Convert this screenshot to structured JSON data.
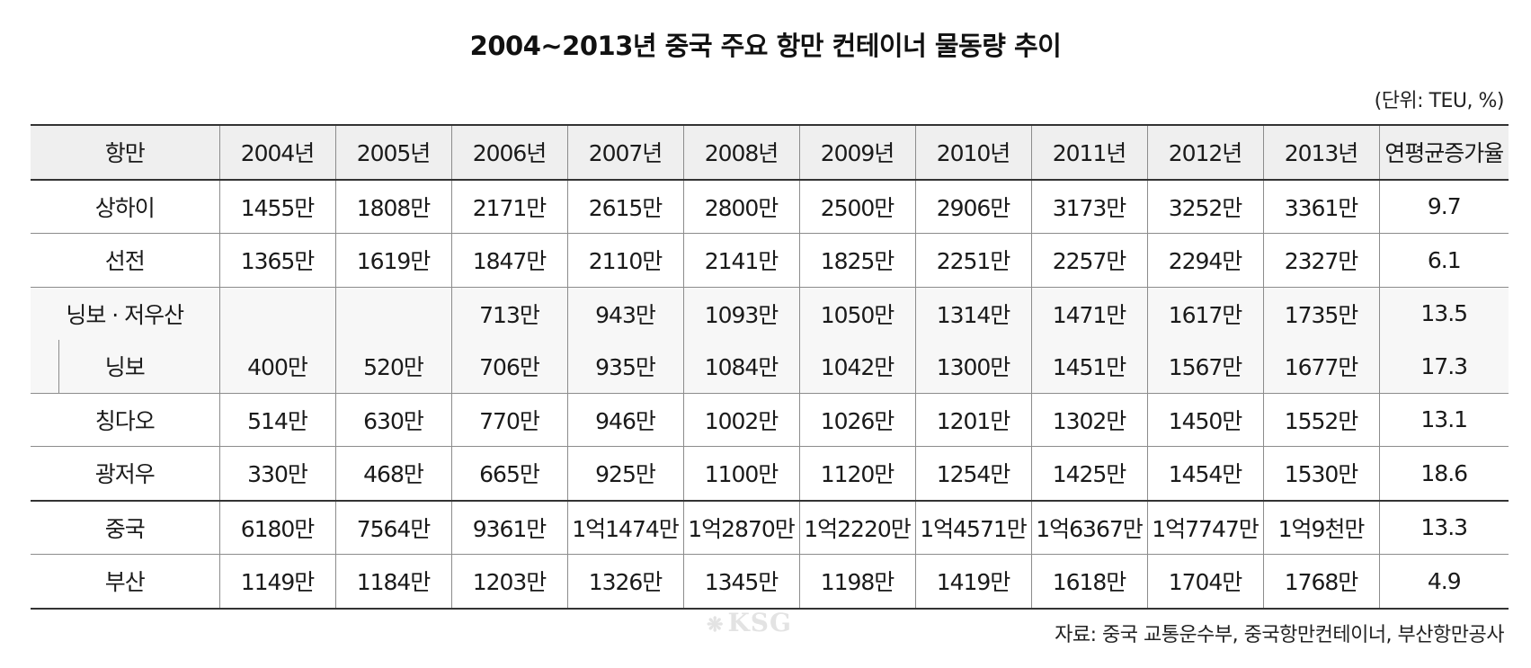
{
  "title": "2004~2013년 중국 주요 항만 컨테이너 물동량 추이",
  "unit": "(단위: TEU, %)",
  "table": {
    "headers": [
      "항만",
      "2004년",
      "2005년",
      "2006년",
      "2007년",
      "2008년",
      "2009년",
      "2010년",
      "2011년",
      "2012년",
      "2013년",
      "연평균증가율"
    ],
    "rows": [
      {
        "port": "상하이",
        "values": [
          "1455만",
          "1808만",
          "2171만",
          "2615만",
          "2800만",
          "2500만",
          "2906만",
          "3173만",
          "3252만",
          "3361만"
        ],
        "rate": "9.7"
      },
      {
        "port": "선전",
        "values": [
          "1365만",
          "1619만",
          "1847만",
          "2110만",
          "2141만",
          "1825만",
          "2251만",
          "2257만",
          "2294만",
          "2327만"
        ],
        "rate": "6.1"
      },
      {
        "port": "닝보 · 저우산",
        "values": [
          "",
          "",
          "713만",
          "943만",
          "1093만",
          "1050만",
          "1314만",
          "1471만",
          "1617만",
          "1735만"
        ],
        "rate": "13.5"
      },
      {
        "port": "닝보",
        "values": [
          "400만",
          "520만",
          "706만",
          "935만",
          "1084만",
          "1042만",
          "1300만",
          "1451만",
          "1567만",
          "1677만"
        ],
        "rate": "17.3"
      },
      {
        "port": "칭다오",
        "values": [
          "514만",
          "630만",
          "770만",
          "946만",
          "1002만",
          "1026만",
          "1201만",
          "1302만",
          "1450만",
          "1552만"
        ],
        "rate": "13.1"
      },
      {
        "port": "광저우",
        "values": [
          "330만",
          "468만",
          "665만",
          "925만",
          "1100만",
          "1120만",
          "1254만",
          "1425만",
          "1454만",
          "1530만"
        ],
        "rate": "18.6"
      },
      {
        "port": "중국",
        "values": [
          "6180만",
          "7564만",
          "9361만",
          "1억1474만",
          "1억2870만",
          "1억2220만",
          "1억4571만",
          "1억6367만",
          "1억7747만",
          "1억9천만"
        ],
        "rate": "13.3"
      },
      {
        "port": "부산",
        "values": [
          "1149만",
          "1184만",
          "1203만",
          "1326만",
          "1345만",
          "1198만",
          "1419만",
          "1618만",
          "1704만",
          "1768만"
        ],
        "rate": "4.9"
      }
    ]
  },
  "watermark": "KSG",
  "source": "자료: 중국 교통운수부, 중국항만컨테이너, 부산항만공사"
}
